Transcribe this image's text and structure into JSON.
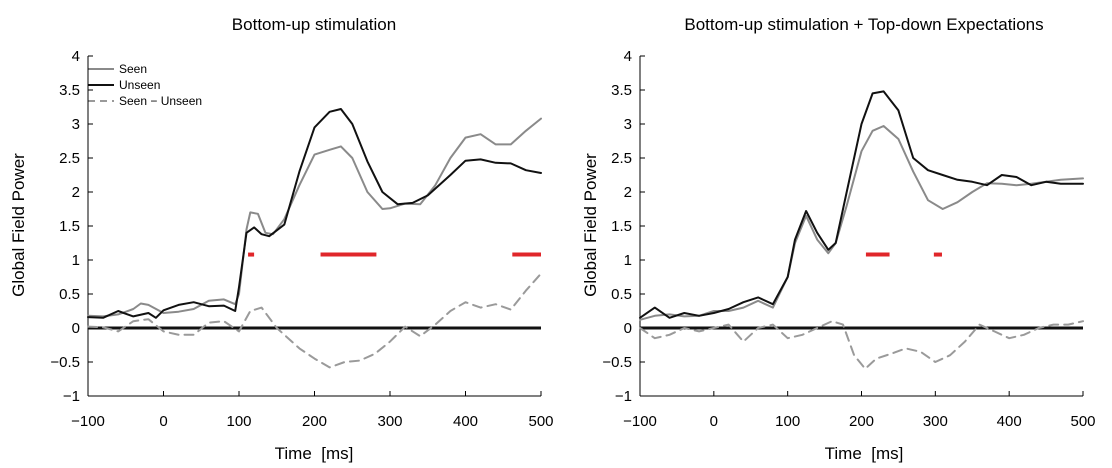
{
  "chart_data": [
    {
      "type": "line",
      "title": "Bottom-up stimulation",
      "xlabel": "Time  [ms]",
      "ylabel": "Global Field Power",
      "xlim": [
        -100,
        500
      ],
      "ylim": [
        -1,
        4
      ],
      "xticks": [
        "−100",
        "0",
        "100",
        "200",
        "300",
        "400",
        "500"
      ],
      "yticks": [
        "−1",
        "−0.5",
        "0",
        "0.5",
        "1",
        "1.5",
        "2",
        "2.5",
        "3",
        "3.5",
        "4"
      ],
      "legend_position": "top-left",
      "grid": false,
      "zero_line": true,
      "colors": {
        "seen": "#8a8a8a",
        "unseen": "#111111",
        "diff": "#9a9a9a",
        "significance": "#e0262a",
        "zero_line": "#111111"
      },
      "series": [
        {
          "name": "Seen",
          "style": "solid",
          "x": [
            -100,
            -80,
            -60,
            -40,
            -30,
            -20,
            0,
            20,
            40,
            60,
            80,
            95,
            100,
            110,
            115,
            125,
            135,
            145,
            160,
            180,
            200,
            220,
            235,
            250,
            270,
            290,
            300,
            320,
            340,
            360,
            380,
            400,
            420,
            440,
            460,
            480,
            500
          ],
          "y": [
            0.18,
            0.17,
            0.2,
            0.28,
            0.36,
            0.34,
            0.22,
            0.24,
            0.28,
            0.4,
            0.42,
            0.35,
            0.5,
            1.45,
            1.7,
            1.68,
            1.4,
            1.38,
            1.6,
            2.1,
            2.55,
            2.62,
            2.67,
            2.5,
            2.0,
            1.75,
            1.76,
            1.83,
            1.82,
            2.1,
            2.5,
            2.8,
            2.85,
            2.7,
            2.7,
            2.9,
            3.08
          ]
        },
        {
          "name": "Unseen",
          "style": "solid",
          "x": [
            -100,
            -80,
            -60,
            -40,
            -20,
            -10,
            0,
            20,
            40,
            60,
            80,
            95,
            100,
            110,
            120,
            130,
            140,
            160,
            180,
            200,
            220,
            235,
            250,
            270,
            290,
            310,
            330,
            350,
            380,
            400,
            420,
            440,
            460,
            480,
            500
          ],
          "y": [
            0.16,
            0.15,
            0.25,
            0.17,
            0.22,
            0.15,
            0.26,
            0.34,
            0.38,
            0.32,
            0.33,
            0.25,
            0.6,
            1.4,
            1.48,
            1.38,
            1.35,
            1.52,
            2.3,
            2.95,
            3.18,
            3.22,
            3.0,
            2.45,
            2.0,
            1.82,
            1.84,
            1.95,
            2.25,
            2.46,
            2.48,
            2.43,
            2.42,
            2.32,
            2.28
          ]
        },
        {
          "name": "Seen − Unseen",
          "style": "dashed",
          "x": [
            -100,
            -80,
            -60,
            -40,
            -20,
            0,
            20,
            40,
            60,
            80,
            100,
            115,
            130,
            150,
            180,
            200,
            220,
            240,
            260,
            280,
            300,
            320,
            340,
            360,
            380,
            400,
            420,
            440,
            460,
            480,
            500
          ],
          "y": [
            0.02,
            0.01,
            -0.05,
            0.1,
            0.13,
            -0.05,
            -0.1,
            -0.1,
            0.08,
            0.1,
            -0.05,
            0.25,
            0.3,
            0.0,
            -0.3,
            -0.45,
            -0.58,
            -0.5,
            -0.48,
            -0.38,
            -0.2,
            0.02,
            -0.12,
            0.05,
            0.25,
            0.38,
            0.3,
            0.35,
            0.27,
            0.55,
            0.8
          ]
        }
      ],
      "significance_bars": [
        [
          112,
          120
        ],
        [
          208,
          282
        ],
        [
          462,
          500
        ]
      ],
      "significance_level": 1.08
    },
    {
      "type": "line",
      "title": "Bottom-up stimulation + Top-down Expectations",
      "xlabel": "Time  [ms]",
      "ylabel": "Global Field Power",
      "xlim": [
        -100,
        500
      ],
      "ylim": [
        -1,
        4
      ],
      "xticks": [
        "−100",
        "0",
        "100",
        "200",
        "300",
        "400",
        "500"
      ],
      "yticks": [
        "−1",
        "−0.5",
        "0",
        "0.5",
        "1",
        "1.5",
        "2",
        "2.5",
        "3",
        "3.5",
        "4"
      ],
      "grid": false,
      "zero_line": true,
      "colors": {
        "seen": "#8a8a8a",
        "unseen": "#111111",
        "diff": "#9a9a9a",
        "significance": "#e0262a",
        "zero_line": "#111111"
      },
      "series": [
        {
          "name": "",
          "role": "seen",
          "style": "solid",
          "x": [
            -100,
            -80,
            -60,
            -40,
            -20,
            0,
            20,
            40,
            60,
            80,
            100,
            110,
            125,
            140,
            155,
            165,
            180,
            200,
            215,
            230,
            250,
            270,
            290,
            310,
            330,
            350,
            370,
            390,
            410,
            430,
            450,
            470,
            500
          ],
          "y": [
            0.12,
            0.18,
            0.2,
            0.17,
            0.18,
            0.25,
            0.25,
            0.3,
            0.4,
            0.3,
            0.75,
            1.25,
            1.65,
            1.3,
            1.1,
            1.25,
            1.8,
            2.6,
            2.9,
            2.97,
            2.78,
            2.3,
            1.88,
            1.75,
            1.85,
            2.0,
            2.13,
            2.12,
            2.1,
            2.12,
            2.15,
            2.18,
            2.2
          ]
        },
        {
          "name": "",
          "role": "unseen",
          "style": "solid",
          "x": [
            -100,
            -80,
            -60,
            -40,
            -20,
            0,
            20,
            40,
            60,
            80,
            100,
            110,
            125,
            140,
            155,
            165,
            180,
            200,
            215,
            230,
            250,
            270,
            290,
            310,
            330,
            350,
            370,
            390,
            410,
            430,
            450,
            470,
            500
          ],
          "y": [
            0.15,
            0.3,
            0.15,
            0.22,
            0.18,
            0.22,
            0.28,
            0.38,
            0.45,
            0.35,
            0.75,
            1.3,
            1.72,
            1.4,
            1.15,
            1.25,
            2.0,
            3.0,
            3.45,
            3.48,
            3.2,
            2.5,
            2.32,
            2.25,
            2.18,
            2.15,
            2.1,
            2.25,
            2.22,
            2.1,
            2.15,
            2.12,
            2.12
          ]
        },
        {
          "name": "",
          "role": "diff",
          "style": "dashed",
          "x": [
            -100,
            -80,
            -60,
            -40,
            -20,
            0,
            20,
            40,
            60,
            80,
            100,
            120,
            140,
            160,
            175,
            190,
            205,
            220,
            240,
            260,
            280,
            300,
            320,
            340,
            360,
            380,
            400,
            420,
            440,
            460,
            480,
            500
          ],
          "y": [
            0.0,
            -0.15,
            -0.1,
            0.0,
            -0.05,
            0.0,
            0.05,
            -0.2,
            0.0,
            0.05,
            -0.15,
            -0.1,
            0.0,
            0.1,
            0.05,
            -0.4,
            -0.6,
            -0.45,
            -0.38,
            -0.3,
            -0.35,
            -0.5,
            -0.4,
            -0.2,
            0.05,
            -0.05,
            -0.15,
            -0.1,
            0.0,
            0.05,
            0.05,
            0.1
          ]
        }
      ],
      "significance_bars": [
        [
          206,
          238
        ],
        [
          298,
          309
        ]
      ],
      "significance_level": 1.08
    }
  ]
}
